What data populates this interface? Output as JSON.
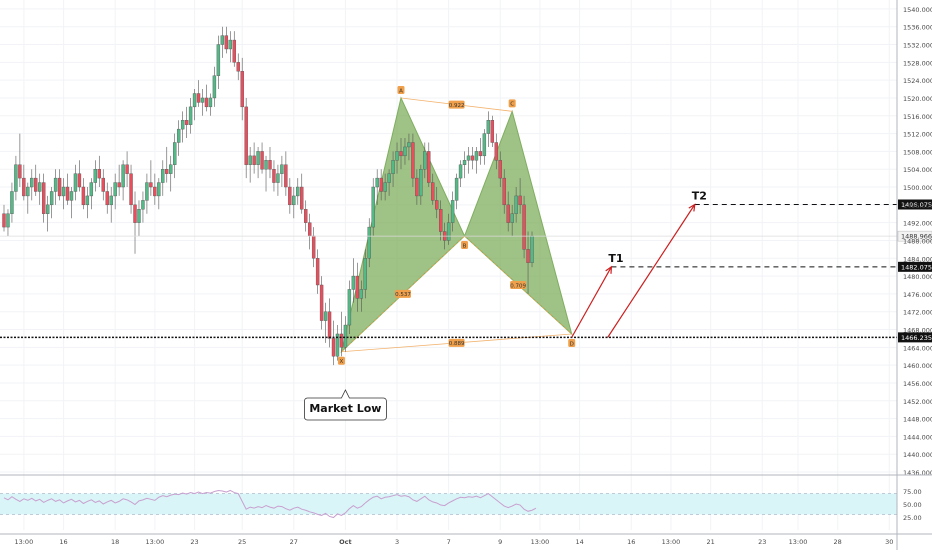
{
  "colors": {
    "up": "#53b987",
    "down": "#eb4d5c",
    "pattern_fill": "#7fae5e",
    "pattern_edge": "#f0a04b",
    "arrow": "#cc1f1f",
    "rsi_band": "#d9f5f8",
    "rsi_line": "#c9a0cf"
  },
  "chart_data": {
    "type": "candlestick",
    "y_ticks": [
      "1540.000",
      "1536.000",
      "1532.000",
      "1528.000",
      "1524.000",
      "1520.000",
      "1516.000",
      "1512.000",
      "1508.000",
      "1504.000",
      "1500.000",
      "1496.000",
      "1492.000",
      "1488.000",
      "1484.000",
      "1480.000",
      "1476.000",
      "1472.000",
      "1468.000",
      "1464.000",
      "1460.000",
      "1456.000",
      "1452.000",
      "1448.000",
      "1444.000",
      "1440.000",
      "1436.000"
    ],
    "ylim": [
      1436,
      1542
    ],
    "x_ticks": [
      {
        "label": "13:00",
        "idx": 5
      },
      {
        "label": "16",
        "idx": 15
      },
      {
        "label": "18",
        "idx": 28
      },
      {
        "label": "13:00",
        "idx": 38
      },
      {
        "label": "23",
        "idx": 48
      },
      {
        "label": "25",
        "idx": 60
      },
      {
        "label": "27",
        "idx": 73
      },
      {
        "label": "Oct",
        "idx": 86
      },
      {
        "label": "3",
        "idx": 99
      },
      {
        "label": "7",
        "idx": 112
      },
      {
        "label": "9",
        "idx": 125
      },
      {
        "label": "13:00",
        "idx": 135
      },
      {
        "label": "14",
        "idx": 145
      },
      {
        "label": "16",
        "idx": 158
      },
      {
        "label": "13:00",
        "idx": 168
      },
      {
        "label": "21",
        "idx": 178
      },
      {
        "label": "23",
        "idx": 191
      },
      {
        "label": "13:00",
        "idx": 200
      },
      {
        "label": "28",
        "idx": 210
      },
      {
        "label": "30",
        "idx": 223
      }
    ],
    "candles": [
      [
        1494,
        1496,
        1490,
        1491
      ],
      [
        1491,
        1495,
        1489,
        1494
      ],
      [
        1494,
        1501,
        1492,
        1499
      ],
      [
        1499,
        1507,
        1497,
        1505
      ],
      [
        1505,
        1512,
        1500,
        1502
      ],
      [
        1502,
        1505,
        1497,
        1498
      ],
      [
        1498,
        1501,
        1494,
        1500
      ],
      [
        1500,
        1504,
        1497,
        1502
      ],
      [
        1502,
        1505,
        1498,
        1499
      ],
      [
        1499,
        1503,
        1496,
        1501
      ],
      [
        1501,
        1503,
        1492,
        1494
      ],
      [
        1494,
        1498,
        1490,
        1496
      ],
      [
        1496,
        1500,
        1493,
        1499
      ],
      [
        1499,
        1504,
        1496,
        1502
      ],
      [
        1502,
        1504,
        1497,
        1498
      ],
      [
        1498,
        1502,
        1495,
        1500
      ],
      [
        1500,
        1503,
        1496,
        1497
      ],
      [
        1497,
        1500,
        1493,
        1499
      ],
      [
        1499,
        1505,
        1497,
        1503
      ],
      [
        1503,
        1506,
        1499,
        1500
      ],
      [
        1500,
        1502,
        1495,
        1496
      ],
      [
        1496,
        1500,
        1493,
        1498
      ],
      [
        1498,
        1502,
        1495,
        1501
      ],
      [
        1501,
        1506,
        1499,
        1504
      ],
      [
        1504,
        1507,
        1500,
        1502
      ],
      [
        1502,
        1504,
        1497,
        1499
      ],
      [
        1499,
        1501,
        1494,
        1496
      ],
      [
        1496,
        1500,
        1492,
        1498
      ],
      [
        1498,
        1503,
        1495,
        1501
      ],
      [
        1501,
        1505,
        1498,
        1500
      ],
      [
        1500,
        1506,
        1497,
        1505
      ],
      [
        1505,
        1508,
        1500,
        1503
      ],
      [
        1503,
        1505,
        1494,
        1496
      ],
      [
        1496,
        1499,
        1485,
        1492
      ],
      [
        1492,
        1497,
        1489,
        1495
      ],
      [
        1495,
        1499,
        1492,
        1497
      ],
      [
        1497,
        1503,
        1494,
        1501
      ],
      [
        1501,
        1506,
        1498,
        1500
      ],
      [
        1500,
        1503,
        1496,
        1498
      ],
      [
        1498,
        1502,
        1495,
        1501
      ],
      [
        1501,
        1506,
        1498,
        1504
      ],
      [
        1504,
        1509,
        1501,
        1503
      ],
      [
        1503,
        1507,
        1499,
        1505
      ],
      [
        1505,
        1512,
        1502,
        1510
      ],
      [
        1510,
        1515,
        1507,
        1513
      ],
      [
        1513,
        1517,
        1510,
        1515
      ],
      [
        1515,
        1518,
        1511,
        1514
      ],
      [
        1514,
        1520,
        1512,
        1518
      ],
      [
        1518,
        1522,
        1515,
        1521
      ],
      [
        1521,
        1524,
        1518,
        1519
      ],
      [
        1519,
        1522,
        1516,
        1520
      ],
      [
        1520,
        1523,
        1517,
        1518
      ],
      [
        1518,
        1521,
        1516,
        1520
      ],
      [
        1520,
        1527,
        1518,
        1525
      ],
      [
        1525,
        1534,
        1522,
        1532
      ],
      [
        1532,
        1536,
        1529,
        1534
      ],
      [
        1534,
        1536,
        1530,
        1531
      ],
      [
        1531,
        1535,
        1528,
        1533
      ],
      [
        1533,
        1535,
        1527,
        1528
      ],
      [
        1528,
        1530,
        1524,
        1526
      ],
      [
        1526,
        1529,
        1515,
        1518
      ],
      [
        1518,
        1520,
        1502,
        1505
      ],
      [
        1505,
        1509,
        1501,
        1507
      ],
      [
        1507,
        1510,
        1503,
        1505
      ],
      [
        1505,
        1509,
        1502,
        1508
      ],
      [
        1508,
        1510,
        1503,
        1504
      ],
      [
        1504,
        1507,
        1499,
        1506
      ],
      [
        1506,
        1509,
        1502,
        1504
      ],
      [
        1504,
        1506,
        1499,
        1501
      ],
      [
        1501,
        1505,
        1498,
        1503
      ],
      [
        1503,
        1507,
        1500,
        1505
      ],
      [
        1505,
        1508,
        1498,
        1500
      ],
      [
        1500,
        1502,
        1494,
        1496
      ],
      [
        1496,
        1500,
        1493,
        1498
      ],
      [
        1498,
        1502,
        1496,
        1500
      ],
      [
        1500,
        1503,
        1494,
        1495
      ],
      [
        1495,
        1497,
        1490,
        1492
      ],
      [
        1492,
        1494,
        1486,
        1489
      ],
      [
        1489,
        1491,
        1482,
        1484
      ],
      [
        1484,
        1486,
        1476,
        1478
      ],
      [
        1478,
        1480,
        1468,
        1470
      ],
      [
        1470,
        1474,
        1465,
        1472
      ],
      [
        1472,
        1475,
        1464,
        1466
      ],
      [
        1466,
        1470,
        1460,
        1462
      ],
      [
        1462,
        1469,
        1461,
        1467
      ],
      [
        1467,
        1472,
        1462,
        1464
      ],
      [
        1464,
        1471,
        1463,
        1469
      ],
      [
        1469,
        1479,
        1467,
        1477
      ],
      [
        1477,
        1484,
        1474,
        1480
      ],
      [
        1480,
        1483,
        1472,
        1475
      ],
      [
        1475,
        1479,
        1472,
        1477
      ],
      [
        1477,
        1486,
        1475,
        1484
      ],
      [
        1484,
        1493,
        1482,
        1491
      ],
      [
        1491,
        1502,
        1489,
        1500
      ],
      [
        1500,
        1504,
        1496,
        1502
      ],
      [
        1502,
        1504,
        1497,
        1499
      ],
      [
        1499,
        1503,
        1497,
        1501
      ],
      [
        1501,
        1504,
        1498,
        1503
      ],
      [
        1503,
        1508,
        1500,
        1506
      ],
      [
        1506,
        1510,
        1503,
        1508
      ],
      [
        1508,
        1511,
        1504,
        1507
      ],
      [
        1507,
        1511,
        1505,
        1509
      ],
      [
        1509,
        1512,
        1506,
        1510
      ],
      [
        1510,
        1512,
        1500,
        1502
      ],
      [
        1502,
        1504,
        1496,
        1498
      ],
      [
        1498,
        1505,
        1496,
        1504
      ],
      [
        1504,
        1510,
        1502,
        1508
      ],
      [
        1508,
        1510,
        1500,
        1501
      ],
      [
        1501,
        1503,
        1496,
        1497
      ],
      [
        1497,
        1500,
        1493,
        1495
      ],
      [
        1495,
        1497,
        1488,
        1490
      ],
      [
        1490,
        1492,
        1486,
        1488
      ],
      [
        1488,
        1494,
        1487,
        1492
      ],
      [
        1492,
        1499,
        1490,
        1497
      ],
      [
        1497,
        1503,
        1495,
        1502
      ],
      [
        1502,
        1506,
        1500,
        1505
      ],
      [
        1505,
        1508,
        1502,
        1506
      ],
      [
        1506,
        1509,
        1503,
        1507
      ],
      [
        1507,
        1509,
        1504,
        1506
      ],
      [
        1506,
        1509,
        1503,
        1508
      ],
      [
        1508,
        1511,
        1505,
        1507
      ],
      [
        1507,
        1513,
        1505,
        1512
      ],
      [
        1512,
        1517,
        1509,
        1515
      ],
      [
        1515,
        1516,
        1509,
        1510
      ],
      [
        1510,
        1512,
        1504,
        1506
      ],
      [
        1506,
        1508,
        1500,
        1502
      ],
      [
        1502,
        1504,
        1494,
        1496
      ],
      [
        1496,
        1499,
        1490,
        1492
      ],
      [
        1492,
        1496,
        1489,
        1494
      ],
      [
        1494,
        1500,
        1492,
        1498
      ],
      [
        1498,
        1502,
        1494,
        1496
      ],
      [
        1496,
        1498,
        1484,
        1486
      ],
      [
        1486,
        1490,
        1476,
        1483
      ],
      [
        1483,
        1490,
        1482,
        1489
      ]
    ],
    "pattern": {
      "points": [
        {
          "label": "X",
          "idx": 85,
          "price": 1463
        },
        {
          "label": "A",
          "idx": 100,
          "price": 1520
        },
        {
          "label": "B",
          "idx": 116,
          "price": 1489
        },
        {
          "label": "C",
          "idx": 128,
          "price": 1517
        },
        {
          "label": "D",
          "idx": 143,
          "price": 1467
        }
      ],
      "ratios": [
        {
          "label": "0.922",
          "from": "A",
          "to": "C"
        },
        {
          "label": "0.537",
          "from": "X",
          "to": "B"
        },
        {
          "label": "0.709",
          "from": "B",
          "to": "D"
        },
        {
          "label": "0.889",
          "from": "X",
          "to": "D"
        }
      ]
    },
    "targets": [
      {
        "label": "T1",
        "price": 1482.075,
        "price_label": "1482.075",
        "start_idx": 153
      },
      {
        "label": "T2",
        "price": 1496.075,
        "price_label": "1496.075",
        "start_idx": 174
      }
    ],
    "entry": {
      "price": 1466.235,
      "price_label": "1466.235"
    },
    "last_price": {
      "price": 1488.966,
      "price_label": "1488.966"
    },
    "annotation": "Market Low",
    "rsi": {
      "ticks": [
        "75.00",
        "50.00",
        "25.00"
      ],
      "band": [
        30,
        70
      ],
      "values": [
        62,
        58,
        64,
        59,
        55,
        60,
        57,
        61,
        56,
        59,
        53,
        57,
        60,
        55,
        58,
        52,
        56,
        59,
        54,
        57,
        51,
        55,
        58,
        53,
        56,
        50,
        54,
        57,
        52,
        55,
        60,
        58,
        54,
        49,
        56,
        58,
        61,
        59,
        57,
        63,
        66,
        64,
        67,
        69,
        68,
        71,
        69,
        72,
        70,
        73,
        70,
        72,
        71,
        74,
        76,
        75,
        73,
        76,
        72,
        70,
        55,
        40,
        44,
        42,
        45,
        43,
        47,
        44,
        42,
        46,
        45,
        41,
        38,
        42,
        44,
        40,
        38,
        35,
        33,
        30,
        28,
        32,
        26,
        24,
        31,
        28,
        33,
        41,
        47,
        42,
        45,
        52,
        58,
        63,
        65,
        60,
        63,
        64,
        66,
        68,
        65,
        66,
        64,
        58,
        55,
        60,
        65,
        58,
        54,
        52,
        48,
        47,
        52,
        56,
        60,
        63,
        62,
        64,
        63,
        65,
        62,
        66,
        70,
        64,
        58,
        52,
        46,
        43,
        46,
        50,
        48,
        40,
        36,
        38,
        42
      ]
    }
  }
}
